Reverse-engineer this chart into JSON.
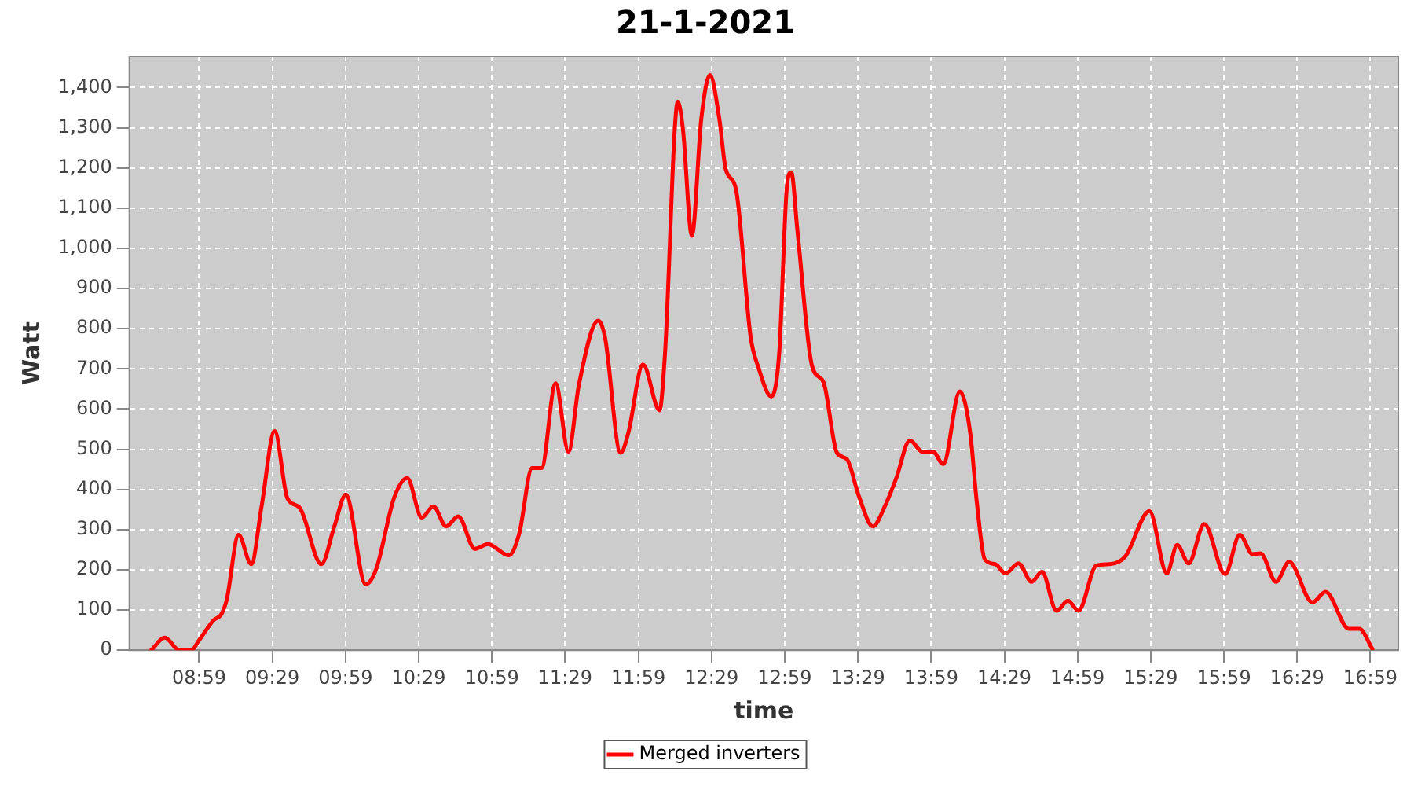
{
  "chart_data": {
    "type": "line",
    "title": "21-1-2021",
    "xlabel": "time",
    "ylabel": "Watt",
    "xlim": [
      8.507,
      17.174
    ],
    "xticks": [
      {
        "value": 8.9833,
        "label": "08:59"
      },
      {
        "value": 9.4833,
        "label": "09:29"
      },
      {
        "value": 9.9833,
        "label": "09:59"
      },
      {
        "value": 10.4833,
        "label": "10:29"
      },
      {
        "value": 10.9833,
        "label": "10:59"
      },
      {
        "value": 11.4833,
        "label": "11:29"
      },
      {
        "value": 11.9833,
        "label": "11:59"
      },
      {
        "value": 12.4833,
        "label": "12:29"
      },
      {
        "value": 12.9833,
        "label": "12:59"
      },
      {
        "value": 13.4833,
        "label": "13:29"
      },
      {
        "value": 13.9833,
        "label": "13:59"
      },
      {
        "value": 14.4833,
        "label": "14:29"
      },
      {
        "value": 14.9833,
        "label": "14:59"
      },
      {
        "value": 15.4833,
        "label": "15:29"
      },
      {
        "value": 15.9833,
        "label": "15:59"
      },
      {
        "value": 16.4833,
        "label": "16:29"
      },
      {
        "value": 16.9833,
        "label": "16:59"
      }
    ],
    "ylim": [
      0,
      1477
    ],
    "yticks": [
      0,
      100,
      200,
      300,
      400,
      500,
      600,
      700,
      800,
      900,
      {
        "value": 1000,
        "label": "1,000"
      },
      {
        "value": 1100,
        "label": "1,100"
      },
      {
        "value": 1200,
        "label": "1,200"
      },
      {
        "value": 1300,
        "label": "1,300"
      },
      {
        "value": 1400,
        "label": "1,400"
      }
    ],
    "grid": true,
    "legend": "bottom",
    "marker": "none",
    "line_style": "solid",
    "series": [
      {
        "name": "Merged inverters",
        "color": "#ff0000",
        "x": [
          8.656,
          8.749,
          8.848,
          8.93,
          8.983,
          9.083,
          9.136,
          9.172,
          9.253,
          9.339,
          9.41,
          9.499,
          9.587,
          9.669,
          9.818,
          9.907,
          9.985,
          10.121,
          10.192,
          10.316,
          10.405,
          10.504,
          10.583,
          10.671,
          10.753,
          10.867,
          10.956,
          11.098,
          11.169,
          11.258,
          11.322,
          11.418,
          11.506,
          11.577,
          11.709,
          11.755,
          11.862,
          11.915,
          12.015,
          12.128,
          12.164,
          12.253,
          12.288,
          12.349,
          12.413,
          12.473,
          12.537,
          12.58,
          12.651,
          12.75,
          12.803,
          12.892,
          12.946,
          12.999,
          13.028,
          13.07,
          13.17,
          13.248,
          13.34,
          13.408,
          13.489,
          13.585,
          13.667,
          13.745,
          13.838,
          13.923,
          13.995,
          14.066,
          14.179,
          14.25,
          14.296,
          14.349,
          14.42,
          14.491,
          14.58,
          14.669,
          14.74,
          14.84,
          14.918,
          14.989,
          15.113,
          15.202,
          15.309,
          15.475,
          15.593,
          15.664,
          15.742,
          15.849,
          15.991,
          16.091,
          16.179,
          16.233,
          16.339,
          16.428,
          16.588,
          16.677,
          16.837,
          16.908,
          16.997
        ],
        "values": [
          0,
          31,
          0,
          0,
          25,
          75,
          90,
          126,
          287,
          214,
          358,
          545,
          377,
          355,
          214,
          308,
          387,
          164,
          201,
          380,
          428,
          330,
          358,
          308,
          333,
          252,
          264,
          236,
          289,
          453,
          453,
          664,
          494,
          660,
          820,
          780,
          491,
          541,
          711,
          597,
          730,
          1365,
          1296,
          1031,
          1321,
          1431,
          1321,
          1197,
          1145,
          780,
          704,
          631,
          742,
          1157,
          1189,
          1044,
          707,
          667,
          491,
          475,
          384,
          308,
          358,
          428,
          522,
          494,
          494,
          463,
          644,
          541,
          365,
          226,
          214,
          191,
          216,
          170,
          195,
          98,
          123,
          98,
          211,
          214,
          233,
          346,
          191,
          262,
          216,
          314,
          189,
          287,
          239,
          241,
          170,
          220,
          119,
          145,
          53,
          53,
          3
        ]
      }
    ]
  }
}
